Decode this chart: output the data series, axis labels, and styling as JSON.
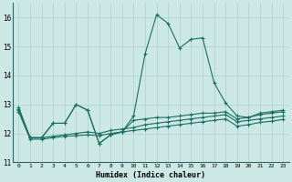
{
  "xlabel": "Humidex (Indice chaleur)",
  "bg_color": "#cce8e4",
  "grid_color": "#b0d0cc",
  "line_color": "#1a6e62",
  "xlim": [
    -0.5,
    23.5
  ],
  "ylim": [
    11.0,
    16.5
  ],
  "yticks": [
    11,
    12,
    13,
    14,
    15,
    16
  ],
  "xticks": [
    0,
    1,
    2,
    3,
    4,
    5,
    6,
    7,
    8,
    9,
    10,
    11,
    12,
    13,
    14,
    15,
    16,
    17,
    18,
    19,
    20,
    21,
    22,
    23
  ],
  "line_peak": [
    12.9,
    11.85,
    11.85,
    12.35,
    12.35,
    13.0,
    12.8,
    11.65,
    11.95,
    12.05,
    12.6,
    14.75,
    16.1,
    15.8,
    14.95,
    15.25,
    15.3,
    13.75,
    13.05,
    12.6,
    12.55,
    12.7,
    12.75,
    12.8
  ],
  "line_upper": [
    12.85,
    11.85,
    11.85,
    12.35,
    12.35,
    13.0,
    12.8,
    11.65,
    11.95,
    12.05,
    12.45,
    12.5,
    12.55,
    12.55,
    12.6,
    12.65,
    12.7,
    12.7,
    12.75,
    12.5,
    12.55,
    12.65,
    12.7,
    12.75
  ],
  "line_mid": [
    12.8,
    11.85,
    11.85,
    11.9,
    11.95,
    12.0,
    12.05,
    12.0,
    12.1,
    12.15,
    12.2,
    12.3,
    12.35,
    12.4,
    12.45,
    12.5,
    12.55,
    12.6,
    12.65,
    12.4,
    12.45,
    12.5,
    12.55,
    12.6
  ],
  "line_lower": [
    12.75,
    11.8,
    11.8,
    11.85,
    11.9,
    11.92,
    11.95,
    11.92,
    12.0,
    12.05,
    12.1,
    12.15,
    12.2,
    12.25,
    12.3,
    12.35,
    12.4,
    12.45,
    12.5,
    12.25,
    12.3,
    12.38,
    12.42,
    12.48
  ]
}
